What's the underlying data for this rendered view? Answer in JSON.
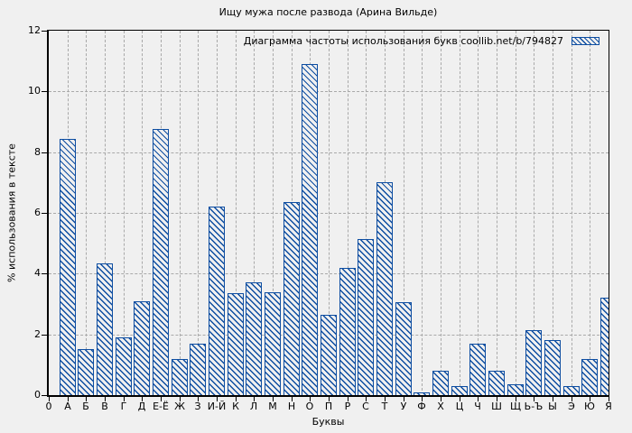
{
  "colors": {
    "background": "#f0f0f0",
    "bar": "#0d4da1",
    "grid": "#a9a9a9",
    "axis": "#000000"
  },
  "chart_data": {
    "type": "bar",
    "title": "Ищу мужа после развода (Арина Вильде)",
    "legend": "Диаграмма частоты использования букв coollib.net/b/794827",
    "legend_position": "top-right",
    "xlabel": "Буквы",
    "ylabel": "% использования в тексте",
    "x_origin_label": "0",
    "categories": [
      "А",
      "Б",
      "В",
      "Г",
      "Д",
      "Е-Ё",
      "Ж",
      "З",
      "И-Й",
      "К",
      "Л",
      "М",
      "Н",
      "О",
      "П",
      "Р",
      "С",
      "Т",
      "У",
      "Ф",
      "Х",
      "Ц",
      "Ч",
      "Ш",
      "Щ",
      "Ь-Ъ",
      "Ы",
      "Э",
      "Ю",
      "Я"
    ],
    "values": [
      8.45,
      1.5,
      4.35,
      1.9,
      3.1,
      8.75,
      1.2,
      1.7,
      6.2,
      3.35,
      3.7,
      3.4,
      6.35,
      10.9,
      2.65,
      4.2,
      5.15,
      7.0,
      3.05,
      0.1,
      0.8,
      0.3,
      1.7,
      0.8,
      0.35,
      2.15,
      1.8,
      0.3,
      1.2,
      3.2
    ],
    "ylim": [
      0,
      12
    ],
    "yticks": [
      0,
      2,
      4,
      6,
      8,
      10,
      12
    ],
    "grid": true,
    "hatch": "diagonal-backslash"
  }
}
